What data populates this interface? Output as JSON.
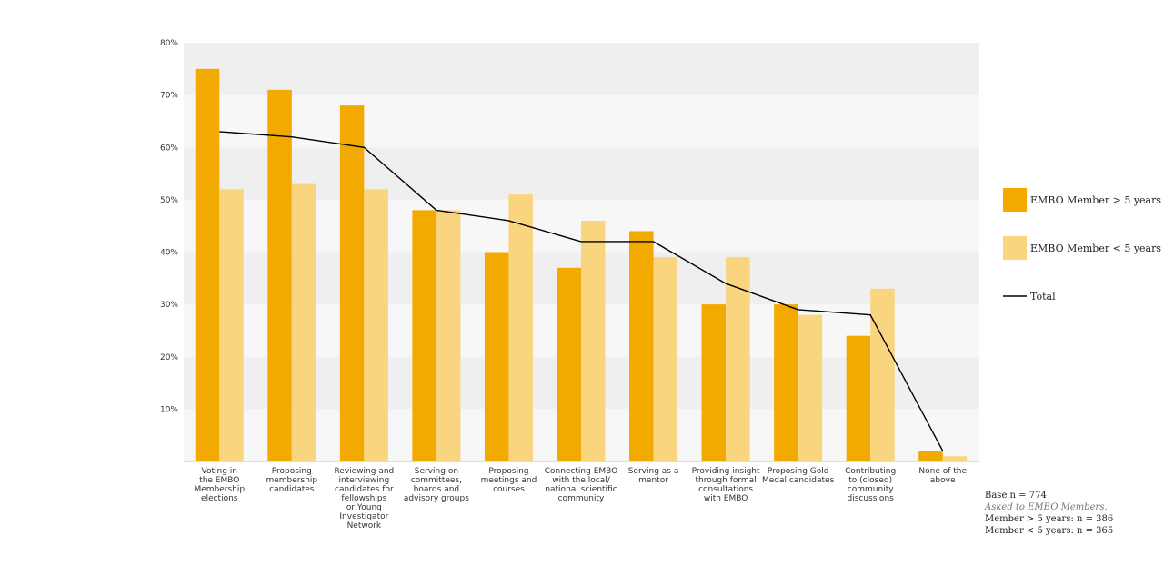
{
  "chart_data": {
    "type": "bar",
    "categories": [
      [
        "Voting in",
        "the EMBO",
        "Membership",
        "elections"
      ],
      [
        "Proposing",
        "membership",
        "candidates"
      ],
      [
        "Reviewing and",
        "interviewing",
        "candidates for",
        "fellowships",
        "or Young",
        "Investigator",
        "Network"
      ],
      [
        "Serving on",
        "committees,",
        "boards and",
        "advisory groups"
      ],
      [
        "Proposing",
        "meetings and",
        "courses"
      ],
      [
        "Connecting EMBO",
        "with the local/",
        "national scientific",
        "community"
      ],
      [
        "Serving as a",
        "mentor"
      ],
      [
        "Providing insight",
        "through formal",
        "consultations",
        "with EMBO"
      ],
      [
        "Proposing Gold",
        "Medal candidates"
      ],
      [
        "Contributing",
        "to (closed)",
        "community",
        "discussions"
      ],
      [
        "None of the",
        "above"
      ]
    ],
    "series": [
      {
        "name": "EMBO Member > 5 years",
        "type": "bar",
        "color": "#f2a900",
        "values": [
          75,
          71,
          68,
          48,
          40,
          37,
          44,
          30,
          30,
          24,
          2
        ]
      },
      {
        "name": "EMBO Member < 5 years",
        "type": "bar",
        "color": "#f9d57f",
        "values": [
          52,
          53,
          52,
          48,
          51,
          46,
          39,
          39,
          28,
          33,
          1
        ]
      },
      {
        "name": "Total",
        "type": "line",
        "color": "#000000",
        "values": [
          63,
          62,
          60,
          48,
          46,
          42,
          42,
          34,
          29,
          28,
          2
        ]
      }
    ],
    "yticks": [
      "10%",
      "20%",
      "30%",
      "40%",
      "50%",
      "60%",
      "70%",
      "80%"
    ],
    "ylim": [
      0,
      80
    ],
    "grid": "alternating bands",
    "legend": "right"
  },
  "notes": {
    "base": "Base n = 774",
    "asked": "Asked to EMBO Members.",
    "more": "Member > 5 years: n = 386",
    "less": "Member < 5 years: n = 365"
  }
}
